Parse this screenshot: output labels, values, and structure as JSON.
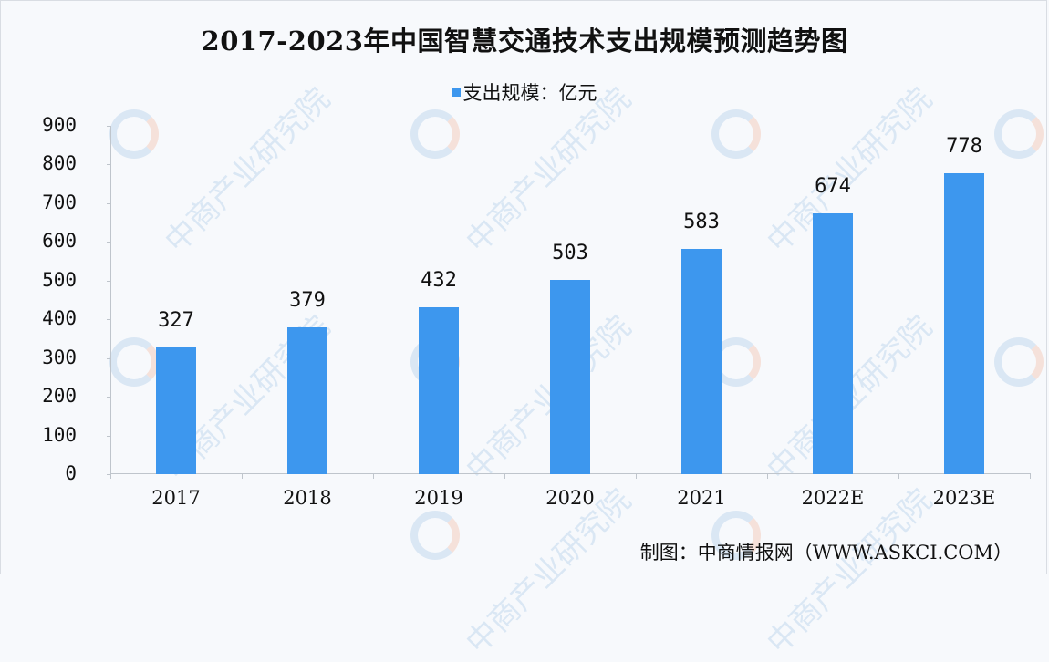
{
  "title": "2017-2023年中国智慧交通技术支出规模预测趋势图",
  "legend": {
    "label": "支出规模：亿元",
    "color": "#3d97ee"
  },
  "source": "制图：中商情报网（WWW.ASKCI.COM）",
  "watermark_text": "中商产业研究院",
  "y_ticks": [
    "900",
    "800",
    "700",
    "600",
    "500",
    "400",
    "300",
    "200",
    "100",
    "0"
  ],
  "x_labels": [
    "2017",
    "2018",
    "2019",
    "2020",
    "2021",
    "2022E",
    "2023E"
  ],
  "bar_labels": [
    "327",
    "379",
    "432",
    "503",
    "583",
    "674",
    "778"
  ],
  "chart_data": {
    "type": "bar",
    "title": "2017-2023年中国智慧交通技术支出规模预测趋势图",
    "categories": [
      "2017",
      "2018",
      "2019",
      "2020",
      "2021",
      "2022E",
      "2023E"
    ],
    "series": [
      {
        "name": "支出规模：亿元",
        "values": [
          327,
          379,
          432,
          503,
          583,
          674,
          778
        ],
        "color": "#3d97ee"
      }
    ],
    "xlabel": "",
    "ylabel": "",
    "ylim": [
      0,
      900
    ],
    "yticks": [
      0,
      100,
      200,
      300,
      400,
      500,
      600,
      700,
      800,
      900
    ],
    "grid": false,
    "legend_position": "top",
    "data_labels": true,
    "source": "制图：中商情报网（WWW.ASKCI.COM）"
  }
}
